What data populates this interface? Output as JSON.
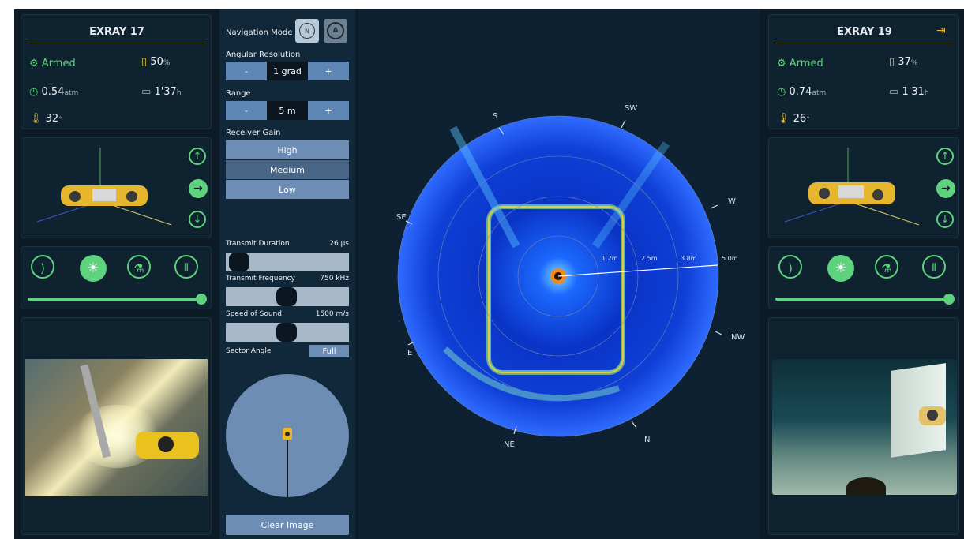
{
  "left_robot": {
    "name": "EXRAY 17",
    "status": "Armed",
    "battery_value": "50",
    "battery_unit": "%",
    "pressure_value": "0.54",
    "pressure_unit": "atm",
    "runtime_value": "1'37",
    "runtime_unit": "h",
    "temperature_value": "32",
    "temperature_unit": "°",
    "light_slider_fraction": 0.98
  },
  "right_robot": {
    "name": "EXRAY 19",
    "status": "Armed",
    "battery_value": "37",
    "battery_unit": "%",
    "pressure_value": "0.74",
    "pressure_unit": "atm",
    "runtime_value": "1'31",
    "runtime_unit": "h",
    "temperature_value": "26",
    "temperature_unit": "°",
    "light_slider_fraction": 0.98
  },
  "controls": {
    "navigation_mode_label": "Navigation Mode",
    "nav_north_letter": "N",
    "nav_auto_letter": "A",
    "angular_resolution_label": "Angular Resolution",
    "angular_resolution_value": "1 grad",
    "range_label": "Range",
    "range_value": "5 m",
    "minus": "-",
    "plus": "+",
    "receiver_gain_label": "Receiver Gain",
    "gain_options": [
      "High",
      "Medium",
      "Low"
    ],
    "gain_selected": "Medium",
    "transmit_duration_label": "Transmit Duration",
    "transmit_duration_value": "26 µs",
    "transmit_frequency_label": "Transmit Frequency",
    "transmit_frequency_value": "750 kHz",
    "speed_of_sound_label": "Speed of Sound",
    "speed_of_sound_value": "1500 m/s",
    "sector_angle_label": "Sector Angle",
    "sector_angle_value": "Full",
    "clear_image_label": "Clear Image"
  },
  "sonar": {
    "compass": [
      "S",
      "SW",
      "W",
      "NW",
      "N",
      "NE",
      "E",
      "SE"
    ],
    "range_rings": [
      "1.2m",
      "2.5m",
      "3.8m",
      "5.0m"
    ],
    "colors": {
      "background": "#0c1b26",
      "sonar_base": "#0b2a9e",
      "accent_green": "#5fd27e"
    }
  }
}
